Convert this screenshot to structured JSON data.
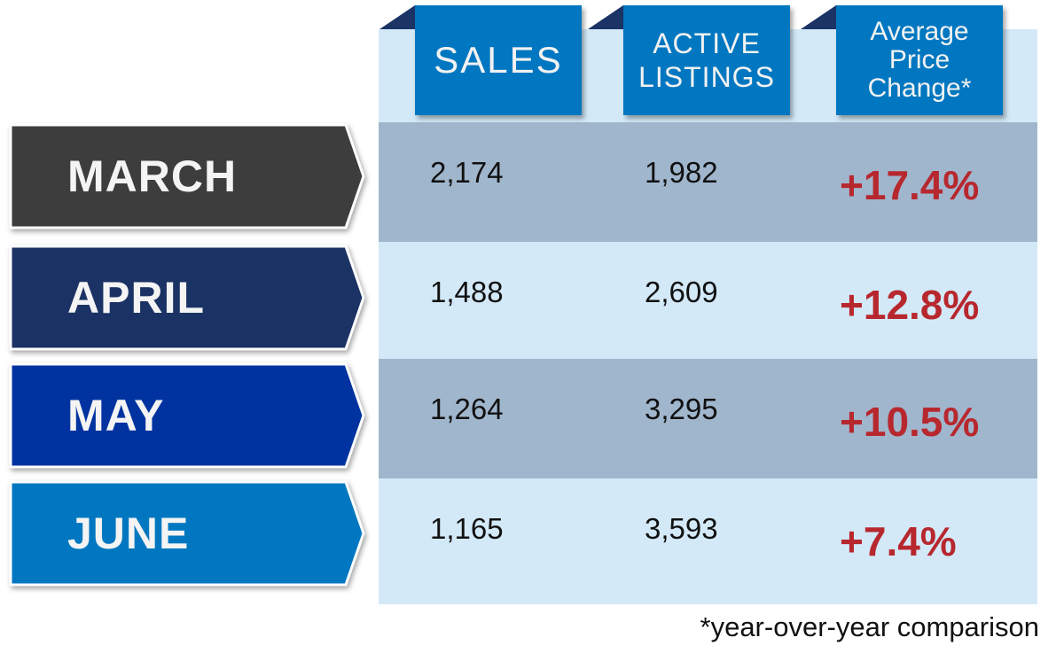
{
  "chart_data": {
    "type": "table",
    "columns": [
      "SALES",
      "ACTIVE\nLISTINGS",
      "Average\nPrice\nChange*"
    ],
    "rows": [
      {
        "month": "MARCH",
        "sales": "2,174",
        "listings": "1,982",
        "change": "+17.4%",
        "color": "#3d3d3d"
      },
      {
        "month": "APRIL",
        "sales": "1,488",
        "listings": "2,609",
        "change": "+12.8%",
        "color": "#1b3264"
      },
      {
        "month": "MAY",
        "sales": "1,264",
        "listings": "3,295",
        "change": "+10.5%",
        "color": "#0033a0"
      },
      {
        "month": "JUNE",
        "sales": "1,165",
        "listings": "3,593",
        "change": "+7.4%",
        "color": "#0077c0"
      }
    ],
    "footnote": "*year-over-year comparison"
  }
}
